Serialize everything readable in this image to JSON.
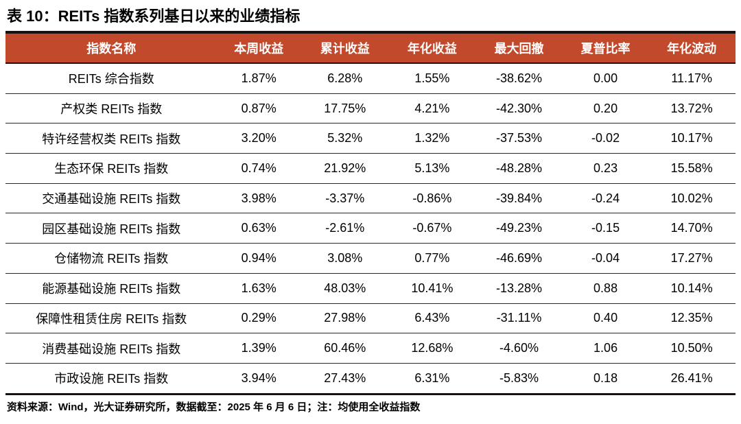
{
  "title": "表 10：REITs 指数系列基日以来的业绩指标",
  "footer_note": "资料来源：Wind，光大证券研究所，数据截至：2025 年 6 月 6 日；注：均使用全收益指数",
  "colors": {
    "header_bg": "#C2492C",
    "header_text": "#FFFFFF",
    "top_rule": "#17100D",
    "row_line": "#262626",
    "body_text": "#000000"
  },
  "chart_data": {
    "type": "table",
    "title": "表 10：REITs 指数系列基日以来的业绩指标",
    "columns": [
      "指数名称",
      "本周收益",
      "累计收益",
      "年化收益",
      "最大回撤",
      "夏普比率",
      "年化波动"
    ],
    "rows": [
      [
        "REITs 综合指数",
        "1.87%",
        "6.28%",
        "1.55%",
        "-38.62%",
        "0.00",
        "11.17%"
      ],
      [
        "产权类 REITs 指数",
        "0.87%",
        "17.75%",
        "4.21%",
        "-42.30%",
        "0.20",
        "13.72%"
      ],
      [
        "特许经营权类 REITs 指数",
        "3.20%",
        "5.32%",
        "1.32%",
        "-37.53%",
        "-0.02",
        "10.17%"
      ],
      [
        "生态环保 REITs 指数",
        "0.74%",
        "21.92%",
        "5.13%",
        "-48.28%",
        "0.23",
        "15.58%"
      ],
      [
        "交通基础设施 REITs 指数",
        "3.98%",
        "-3.37%",
        "-0.86%",
        "-39.84%",
        "-0.24",
        "10.02%"
      ],
      [
        "园区基础设施 REITs 指数",
        "0.63%",
        "-2.61%",
        "-0.67%",
        "-49.23%",
        "-0.15",
        "14.70%"
      ],
      [
        "仓储物流 REITs 指数",
        "0.94%",
        "3.08%",
        "0.77%",
        "-46.69%",
        "-0.04",
        "17.27%"
      ],
      [
        "能源基础设施 REITs 指数",
        "1.63%",
        "48.03%",
        "10.41%",
        "-13.28%",
        "0.88",
        "10.14%"
      ],
      [
        "保障性租赁住房 REITs 指数",
        "0.29%",
        "27.98%",
        "6.43%",
        "-31.11%",
        "0.40",
        "12.35%"
      ],
      [
        "消费基础设施 REITs 指数",
        "1.39%",
        "60.46%",
        "12.68%",
        "-4.60%",
        "1.06",
        "10.50%"
      ],
      [
        "市政设施 REITs 指数",
        "3.94%",
        "27.43%",
        "6.31%",
        "-5.83%",
        "0.18",
        "26.41%"
      ]
    ],
    "column_widths_pct": [
      29,
      11.4,
      12.2,
      11.7,
      12.1,
      11.6,
      12.0
    ],
    "source_note": "资料来源：Wind，光大证券研究所，数据截至：2025 年 6 月 6 日；注：均使用全收益指数"
  }
}
